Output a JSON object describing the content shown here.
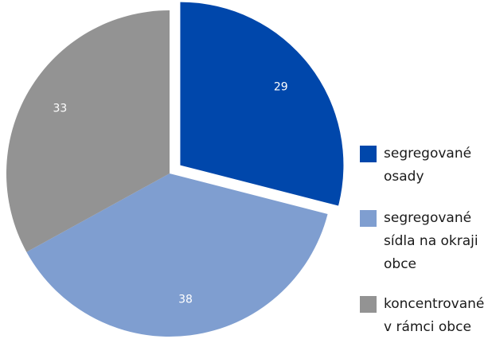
{
  "chart_data": {
    "type": "pie",
    "categories": [
      "segregované osady",
      "segregované sídla na okraji obce",
      "koncentrované v rámci obce"
    ],
    "values": [
      29,
      38,
      33
    ],
    "colors": [
      "#0047ab",
      "#7f9ed0",
      "#939393"
    ],
    "exploded": [
      true,
      false,
      false
    ]
  }
}
